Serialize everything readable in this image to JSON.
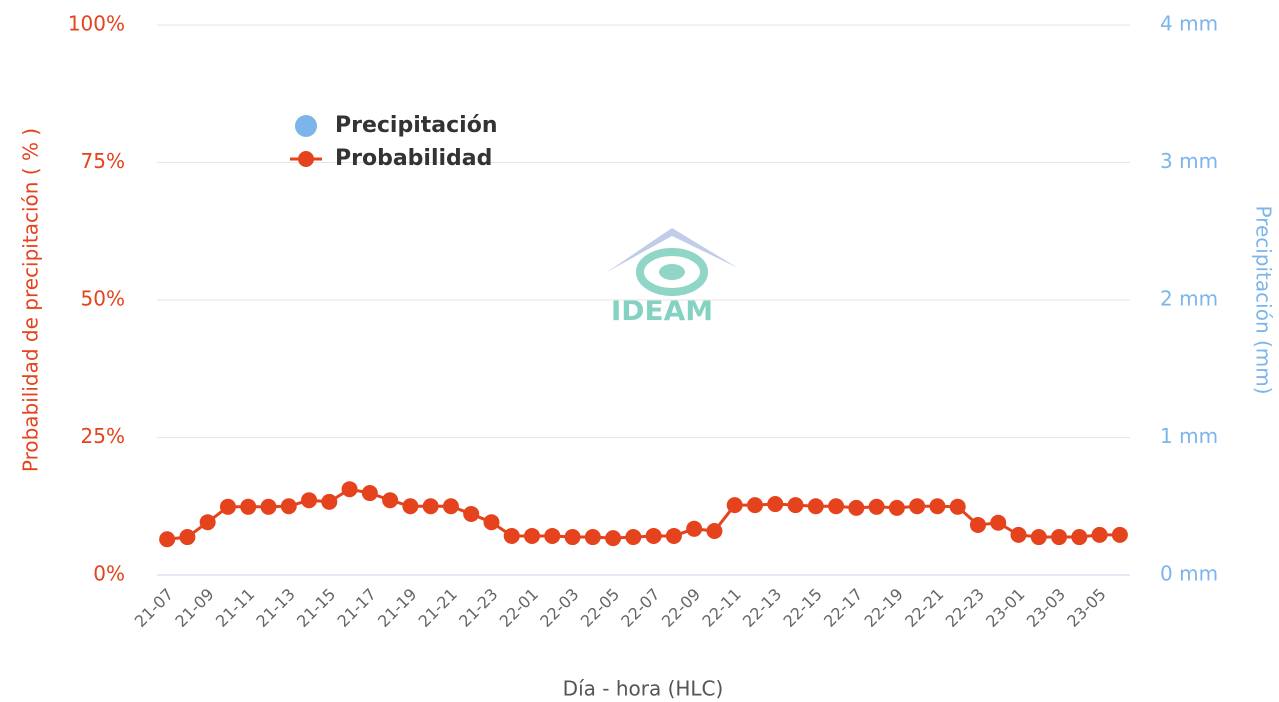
{
  "chart_data": {
    "type": "line",
    "x_label": "Día - hora (HLC)",
    "y_label": "Probabilidad de precipitación ( % )",
    "y2_label": "Precipitación (mm)",
    "watermark": "IDEAM",
    "legend": "top-left",
    "grid": true,
    "categories": [
      "21-07",
      null,
      "21-09",
      null,
      "21-11",
      null,
      "21-13",
      null,
      "21-15",
      null,
      "21-17",
      null,
      "21-19",
      null,
      "21-21",
      null,
      "21-23",
      null,
      "22-01",
      null,
      "22-03",
      null,
      "22-05",
      null,
      "22-07",
      null,
      "22-09",
      null,
      "22-11",
      null,
      "22-13",
      null,
      "22-15",
      null,
      "22-17",
      null,
      "22-19",
      null,
      "22-21",
      null,
      "22-23",
      null,
      "23-01",
      null,
      "23-03",
      null,
      "23-05",
      null
    ],
    "series": [
      {
        "name": "Precipitación",
        "color": "#7cb5ec",
        "axis": "y2"
      },
      {
        "name": "Probabilidad",
        "color": "#e5431d",
        "values": [
          6.5,
          6.9,
          9.6,
          12.4,
          12.4,
          12.4,
          12.5,
          13.6,
          13.3,
          15.6,
          14.9,
          13.6,
          12.5,
          12.5,
          12.5,
          11.1,
          9.6,
          7.1,
          7.1,
          7.1,
          6.9,
          6.9,
          6.7,
          6.9,
          7.1,
          7.1,
          8.4,
          8.0,
          12.7,
          12.7,
          12.9,
          12.7,
          12.5,
          12.5,
          12.2,
          12.4,
          12.2,
          12.5,
          12.5,
          12.4,
          9.1,
          9.5,
          7.3,
          6.9,
          6.9,
          6.9,
          7.3,
          7.3
        ]
      }
    ],
    "ylim": [
      0,
      100
    ],
    "yticks": [
      {
        "value": 0,
        "label": "0%"
      },
      {
        "value": 25,
        "label": "25%"
      },
      {
        "value": 50,
        "label": "50%"
      },
      {
        "value": 75,
        "label": "75%"
      },
      {
        "value": 100,
        "label": "100%"
      }
    ],
    "y2lim": [
      0,
      4
    ],
    "y2ticks": [
      {
        "value": 0,
        "label": "0 mm"
      },
      {
        "value": 1,
        "label": "1 mm"
      },
      {
        "value": 2,
        "label": "2 mm"
      },
      {
        "value": 3,
        "label": "3 mm"
      },
      {
        "value": 4,
        "label": "4 mm"
      }
    ]
  }
}
